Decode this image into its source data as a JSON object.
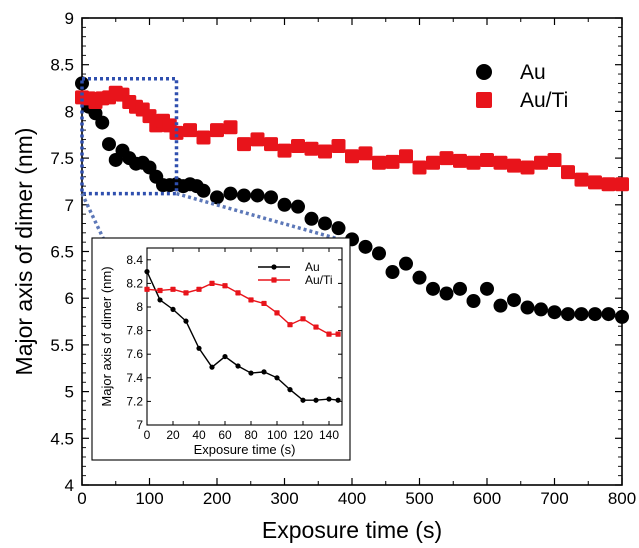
{
  "chart_data": [
    {
      "type": "scatter",
      "xlabel": "Exposure time (s)",
      "ylabel": "Major axis of dimer (nm)",
      "xlim": [
        0,
        800
      ],
      "ylim": [
        4,
        9
      ],
      "xticks": [
        0,
        100,
        200,
        300,
        400,
        500,
        600,
        700,
        800
      ],
      "yticks": [
        4,
        4.5,
        5,
        5.5,
        6,
        6.5,
        7,
        7.5,
        8,
        8.5,
        9
      ],
      "grid": false,
      "legend_position": "top-right",
      "series": [
        {
          "name": "Au",
          "color": "#000000",
          "marker": "circle",
          "x": [
            0,
            10,
            20,
            30,
            40,
            50,
            60,
            70,
            80,
            90,
            100,
            110,
            120,
            130,
            140,
            150,
            160,
            170,
            180,
            200,
            220,
            240,
            260,
            280,
            300,
            320,
            340,
            360,
            380,
            400,
            420,
            440,
            460,
            480,
            500,
            520,
            540,
            560,
            580,
            600,
            620,
            640,
            660,
            680,
            700,
            720,
            740,
            760,
            780,
            800
          ],
          "y": [
            8.3,
            8.05,
            7.98,
            7.88,
            7.65,
            7.48,
            7.58,
            7.5,
            7.44,
            7.45,
            7.4,
            7.3,
            7.21,
            7.21,
            7.22,
            7.2,
            7.22,
            7.2,
            7.15,
            7.08,
            7.12,
            7.1,
            7.1,
            7.08,
            7.0,
            6.98,
            6.85,
            6.8,
            6.75,
            6.63,
            6.55,
            6.48,
            6.28,
            6.37,
            6.22,
            6.1,
            6.05,
            6.1,
            5.97,
            6.1,
            5.92,
            5.98,
            5.9,
            5.88,
            5.85,
            5.83,
            5.83,
            5.83,
            5.83,
            5.8
          ]
        },
        {
          "name": "Au/Ti",
          "color": "#e8141b",
          "marker": "square",
          "x": [
            0,
            10,
            20,
            30,
            40,
            50,
            60,
            70,
            80,
            90,
            100,
            110,
            120,
            130,
            140,
            160,
            180,
            200,
            220,
            240,
            260,
            280,
            300,
            320,
            340,
            360,
            380,
            400,
            420,
            440,
            460,
            480,
            500,
            520,
            540,
            560,
            580,
            600,
            620,
            640,
            660,
            680,
            700,
            720,
            740,
            760,
            780,
            800
          ],
          "y": [
            8.15,
            8.14,
            8.1,
            8.14,
            8.15,
            8.2,
            8.18,
            8.1,
            8.05,
            8.02,
            7.95,
            7.85,
            7.9,
            7.85,
            7.77,
            7.8,
            7.72,
            7.8,
            7.83,
            7.65,
            7.7,
            7.65,
            7.58,
            7.63,
            7.6,
            7.57,
            7.63,
            7.52,
            7.55,
            7.45,
            7.46,
            7.52,
            7.4,
            7.45,
            7.5,
            7.47,
            7.45,
            7.48,
            7.45,
            7.42,
            7.4,
            7.45,
            7.48,
            7.35,
            7.27,
            7.24,
            7.22,
            7.22
          ]
        }
      ],
      "annotations": [
        "dotted blue box marking the 0-140 s region, with dotted lines linking it to the inset"
      ]
    },
    {
      "type": "line",
      "role": "inset",
      "xlabel": "Exposure time (s)",
      "ylabel": "Major axis of dimer (nm)",
      "xlim": [
        0,
        150
      ],
      "ylim": [
        7,
        8.5
      ],
      "xticks": [
        0,
        20,
        40,
        60,
        80,
        100,
        120,
        140
      ],
      "yticks": [
        7,
        7.2,
        7.4,
        7.6,
        7.8,
        8,
        8.2,
        8.4
      ],
      "ytick_labels": [
        "7",
        "7.2",
        "7.4",
        "7.6",
        "7.8",
        "8",
        "8.2",
        "8.4"
      ],
      "grid": false,
      "legend_position": "top-right",
      "series": [
        {
          "name": "Au",
          "color": "#000000",
          "marker": "circle",
          "x": [
            0,
            10,
            20,
            30,
            40,
            50,
            60,
            70,
            80,
            90,
            100,
            110,
            120,
            130,
            140,
            147
          ],
          "y": [
            8.3,
            8.06,
            7.98,
            7.88,
            7.65,
            7.49,
            7.58,
            7.5,
            7.44,
            7.45,
            7.4,
            7.3,
            7.21,
            7.21,
            7.22,
            7.21
          ]
        },
        {
          "name": "Au/Ti",
          "color": "#e8141b",
          "marker": "square",
          "x": [
            0,
            10,
            20,
            30,
            40,
            50,
            60,
            70,
            80,
            90,
            100,
            110,
            120,
            130,
            140,
            147
          ],
          "y": [
            8.15,
            8.14,
            8.15,
            8.12,
            8.15,
            8.2,
            8.18,
            8.12,
            8.06,
            8.03,
            7.95,
            7.85,
            7.9,
            7.83,
            7.77,
            7.77
          ]
        }
      ]
    }
  ]
}
